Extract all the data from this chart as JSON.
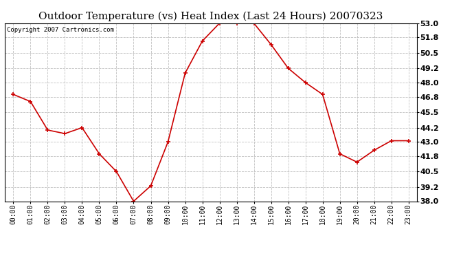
{
  "title": "Outdoor Temperature (vs) Heat Index (Last 24 Hours) 20070323",
  "copyright_text": "Copyright 2007 Cartronics.com",
  "hours": [
    "00:00",
    "01:00",
    "02:00",
    "03:00",
    "04:00",
    "05:00",
    "06:00",
    "07:00",
    "08:00",
    "09:00",
    "10:00",
    "11:00",
    "12:00",
    "13:00",
    "14:00",
    "15:00",
    "16:00",
    "17:00",
    "18:00",
    "19:00",
    "20:00",
    "21:00",
    "22:00",
    "23:00"
  ],
  "values": [
    47.0,
    46.4,
    44.0,
    43.7,
    44.2,
    42.0,
    40.5,
    38.0,
    39.3,
    43.0,
    48.8,
    51.5,
    53.0,
    53.0,
    53.0,
    51.2,
    49.2,
    48.0,
    47.0,
    42.0,
    41.3,
    42.3,
    43.1,
    43.1
  ],
  "line_color": "#cc0000",
  "marker": "+",
  "marker_color": "#cc0000",
  "marker_size": 5,
  "marker_linewidth": 1.2,
  "line_width": 1.2,
  "ylim": [
    38.0,
    53.0
  ],
  "yticks": [
    38.0,
    39.2,
    40.5,
    41.8,
    43.0,
    44.2,
    45.5,
    46.8,
    48.0,
    49.2,
    50.5,
    51.8,
    53.0
  ],
  "background_color": "#ffffff",
  "plot_bg_color": "#ffffff",
  "grid_color": "#c0c0c0",
  "grid_style": "--",
  "title_fontsize": 11,
  "copyright_fontsize": 6.5,
  "tick_fontsize": 7,
  "ytick_fontsize": 8
}
